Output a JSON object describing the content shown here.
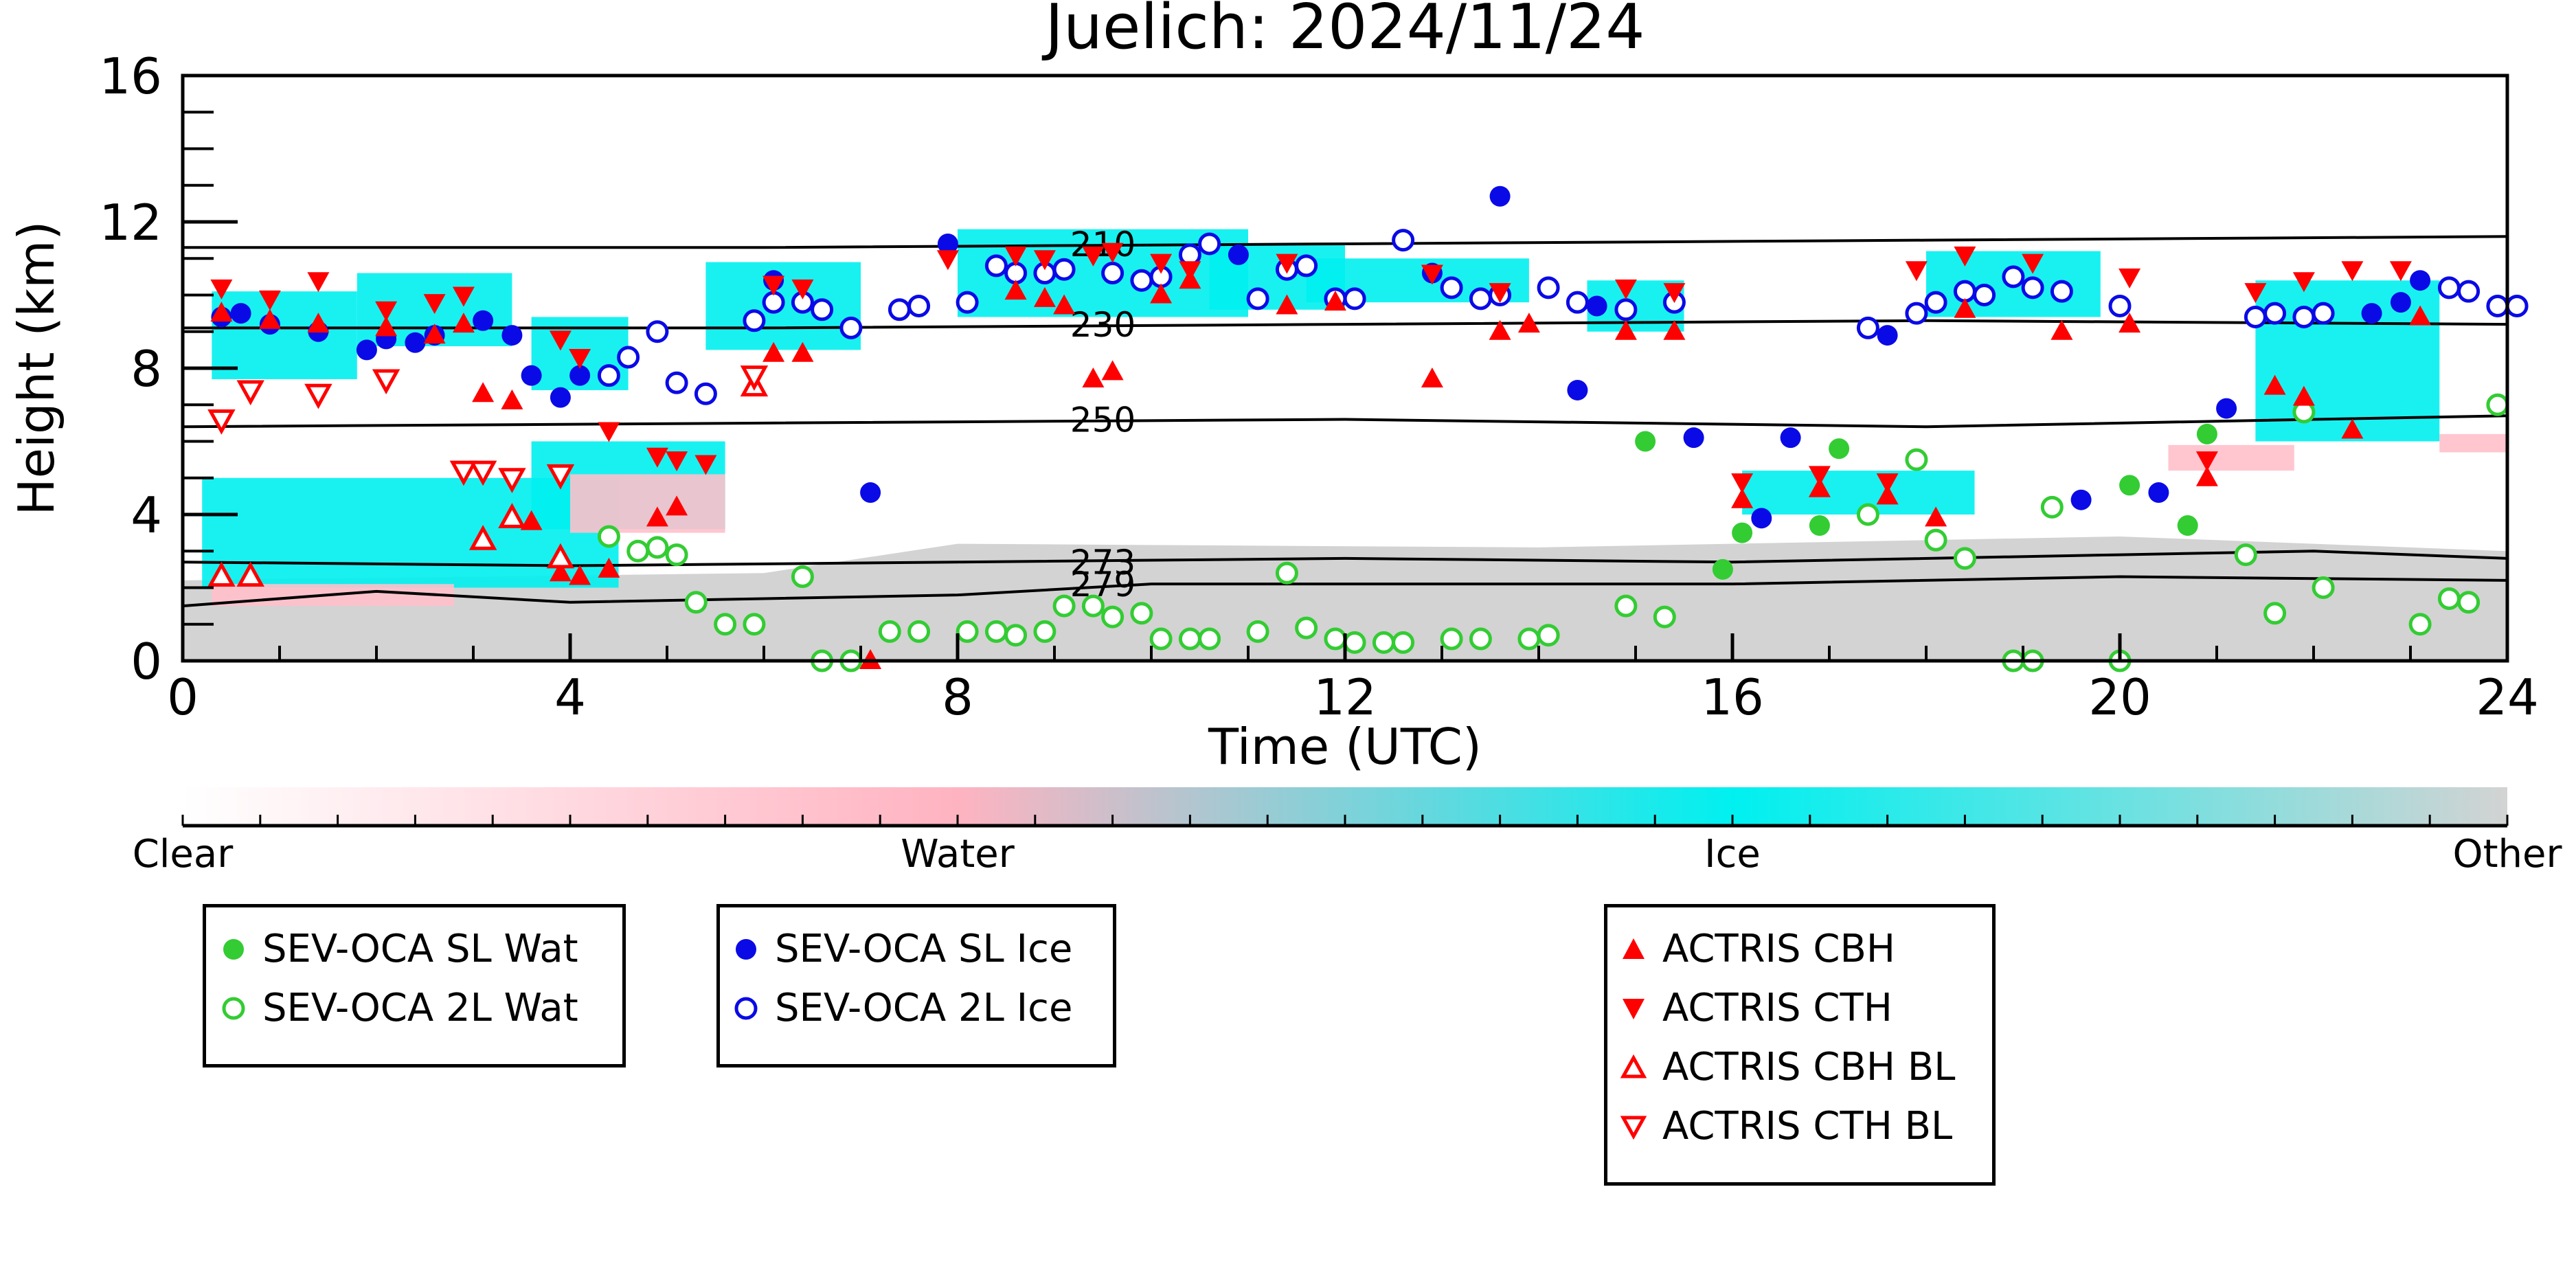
{
  "chart_data": {
    "type": "scatter",
    "title": "Juelich: 2024/11/24",
    "xlabel": "Time (UTC)",
    "ylabel": "Height (km)",
    "xlim": [
      0,
      24
    ],
    "ylim": [
      0,
      16
    ],
    "x_ticks": [
      0,
      4,
      8,
      12,
      16,
      20,
      24
    ],
    "y_ticks": [
      0,
      4,
      8,
      12,
      16
    ],
    "colorbar": {
      "labels": [
        "Clear",
        "Water",
        "Ice",
        "Other"
      ],
      "colors": [
        "#ffffff",
        "#ffb3c1",
        "#00f0f0",
        "#d3d3d3"
      ]
    },
    "isotherms": [
      {
        "label": "210",
        "points": [
          [
            0,
            11.3
          ],
          [
            6,
            11.3
          ],
          [
            12,
            11.4
          ],
          [
            18,
            11.5
          ],
          [
            24,
            11.6
          ]
        ]
      },
      {
        "label": "230",
        "points": [
          [
            0,
            9.1
          ],
          [
            6,
            9.1
          ],
          [
            12,
            9.2
          ],
          [
            18,
            9.3
          ],
          [
            24,
            9.2
          ]
        ]
      },
      {
        "label": "250",
        "points": [
          [
            0,
            6.4
          ],
          [
            6,
            6.5
          ],
          [
            12,
            6.6
          ],
          [
            18,
            6.4
          ],
          [
            24,
            6.7
          ]
        ]
      },
      {
        "label": "273",
        "points": [
          [
            0,
            2.7
          ],
          [
            4,
            2.6
          ],
          [
            8,
            2.7
          ],
          [
            12,
            2.8
          ],
          [
            16,
            2.7
          ],
          [
            20,
            2.9
          ],
          [
            22,
            3.0
          ],
          [
            24,
            2.8
          ]
        ]
      },
      {
        "label": "279",
        "points": [
          [
            0,
            1.5
          ],
          [
            2,
            1.9
          ],
          [
            4,
            1.6
          ],
          [
            6,
            1.7
          ],
          [
            8,
            1.8
          ],
          [
            10,
            2.1
          ],
          [
            12,
            2.1
          ],
          [
            16,
            2.1
          ],
          [
            20,
            2.3
          ],
          [
            24,
            2.2
          ]
        ]
      }
    ],
    "series": [
      {
        "name": "SEV-OCA SL Wat",
        "marker": "circle",
        "filled": true,
        "color": "#33cc33",
        "points": [
          [
            15.1,
            6.0
          ],
          [
            16.1,
            3.5
          ],
          [
            15.9,
            2.5
          ],
          [
            16.9,
            3.7
          ],
          [
            17.1,
            5.8
          ],
          [
            20.1,
            4.8
          ],
          [
            20.9,
            6.2
          ],
          [
            20.7,
            3.7
          ]
        ]
      },
      {
        "name": "SEV-OCA 2L Wat",
        "marker": "circle",
        "filled": false,
        "color": "#33cc33",
        "points": [
          [
            4.4,
            3.4
          ],
          [
            4.7,
            3.0
          ],
          [
            4.9,
            3.1
          ],
          [
            5.1,
            2.9
          ],
          [
            5.3,
            1.6
          ],
          [
            5.6,
            1.0
          ],
          [
            5.9,
            1.0
          ],
          [
            6.4,
            2.3
          ],
          [
            6.6,
            0.0
          ],
          [
            6.9,
            0.0
          ],
          [
            7.3,
            0.8
          ],
          [
            7.6,
            0.8
          ],
          [
            8.1,
            0.8
          ],
          [
            8.4,
            0.8
          ],
          [
            8.6,
            0.7
          ],
          [
            8.9,
            0.8
          ],
          [
            9.1,
            1.5
          ],
          [
            9.4,
            1.5
          ],
          [
            9.6,
            1.2
          ],
          [
            9.9,
            1.3
          ],
          [
            10.1,
            0.6
          ],
          [
            10.4,
            0.6
          ],
          [
            10.6,
            0.6
          ],
          [
            11.1,
            0.8
          ],
          [
            11.4,
            2.4
          ],
          [
            11.6,
            0.9
          ],
          [
            11.9,
            0.6
          ],
          [
            12.1,
            0.5
          ],
          [
            12.4,
            0.5
          ],
          [
            12.6,
            0.5
          ],
          [
            13.1,
            0.6
          ],
          [
            13.4,
            0.6
          ],
          [
            13.9,
            0.6
          ],
          [
            14.1,
            0.7
          ],
          [
            14.9,
            1.5
          ],
          [
            15.3,
            1.2
          ],
          [
            17.4,
            4.0
          ],
          [
            17.9,
            5.5
          ],
          [
            18.1,
            3.3
          ],
          [
            18.4,
            2.8
          ],
          [
            18.9,
            0.0
          ],
          [
            19.1,
            0.0
          ],
          [
            19.3,
            4.2
          ],
          [
            20.0,
            0.0
          ],
          [
            21.3,
            2.9
          ],
          [
            21.6,
            1.3
          ],
          [
            21.9,
            6.8
          ],
          [
            22.1,
            2.0
          ],
          [
            23.1,
            1.0
          ],
          [
            23.4,
            1.7
          ],
          [
            23.6,
            1.6
          ],
          [
            23.9,
            7.0
          ]
        ]
      },
      {
        "name": "SEV-OCA SL Ice",
        "marker": "circle",
        "filled": true,
        "color": "#0a0ae6",
        "points": [
          [
            0.4,
            9.4
          ],
          [
            0.6,
            9.5
          ],
          [
            0.9,
            9.2
          ],
          [
            1.4,
            9.0
          ],
          [
            1.9,
            8.5
          ],
          [
            2.1,
            8.8
          ],
          [
            2.4,
            8.7
          ],
          [
            2.6,
            8.9
          ],
          [
            3.1,
            9.3
          ],
          [
            3.4,
            8.9
          ],
          [
            3.6,
            7.8
          ],
          [
            3.9,
            7.2
          ],
          [
            4.1,
            7.8
          ],
          [
            6.1,
            10.4
          ],
          [
            7.1,
            4.6
          ],
          [
            7.9,
            11.4
          ],
          [
            10.9,
            11.1
          ],
          [
            12.9,
            10.6
          ],
          [
            13.6,
            12.7
          ],
          [
            14.4,
            7.4
          ],
          [
            14.6,
            9.7
          ],
          [
            15.6,
            6.1
          ],
          [
            16.3,
            3.9
          ],
          [
            16.6,
            6.1
          ],
          [
            17.6,
            8.9
          ],
          [
            19.6,
            4.4
          ],
          [
            20.4,
            4.6
          ],
          [
            21.1,
            6.9
          ],
          [
            22.6,
            9.5
          ],
          [
            22.9,
            9.8
          ],
          [
            23.1,
            10.4
          ]
        ]
      },
      {
        "name": "SEV-OCA 2L Ice",
        "marker": "circle",
        "filled": false,
        "color": "#0a0ae6",
        "points": [
          [
            4.4,
            7.8
          ],
          [
            4.6,
            8.3
          ],
          [
            4.9,
            9.0
          ],
          [
            5.1,
            7.6
          ],
          [
            5.4,
            7.3
          ],
          [
            5.9,
            9.3
          ],
          [
            6.1,
            9.8
          ],
          [
            6.4,
            9.8
          ],
          [
            6.6,
            9.6
          ],
          [
            6.9,
            9.1
          ],
          [
            7.4,
            9.6
          ],
          [
            7.6,
            9.7
          ],
          [
            8.1,
            9.8
          ],
          [
            8.4,
            10.8
          ],
          [
            8.6,
            10.6
          ],
          [
            8.9,
            10.6
          ],
          [
            9.1,
            10.7
          ],
          [
            9.6,
            10.6
          ],
          [
            9.9,
            10.4
          ],
          [
            10.1,
            10.5
          ],
          [
            10.4,
            11.1
          ],
          [
            10.6,
            11.4
          ],
          [
            11.1,
            9.9
          ],
          [
            11.4,
            10.7
          ],
          [
            11.6,
            10.8
          ],
          [
            11.9,
            9.9
          ],
          [
            12.1,
            9.9
          ],
          [
            12.6,
            11.5
          ],
          [
            13.1,
            10.2
          ],
          [
            13.4,
            9.9
          ],
          [
            13.6,
            10.0
          ],
          [
            14.1,
            10.2
          ],
          [
            14.4,
            9.8
          ],
          [
            14.9,
            9.6
          ],
          [
            15.4,
            9.8
          ],
          [
            17.4,
            9.1
          ],
          [
            17.9,
            9.5
          ],
          [
            18.1,
            9.8
          ],
          [
            18.4,
            10.1
          ],
          [
            18.6,
            10.0
          ],
          [
            18.9,
            10.5
          ],
          [
            19.1,
            10.2
          ],
          [
            19.4,
            10.1
          ],
          [
            20.0,
            9.7
          ],
          [
            21.4,
            9.4
          ],
          [
            21.6,
            9.5
          ],
          [
            21.9,
            9.4
          ],
          [
            22.1,
            9.5
          ],
          [
            23.4,
            10.2
          ],
          [
            23.6,
            10.1
          ],
          [
            23.9,
            9.7
          ],
          [
            24.1,
            9.7
          ]
        ]
      },
      {
        "name": "ACTRIS CBH",
        "marker": "triangle-up",
        "filled": true,
        "color": "#ff0000",
        "points": [
          [
            0.4,
            9.5
          ],
          [
            0.9,
            9.3
          ],
          [
            1.4,
            9.2
          ],
          [
            2.1,
            9.1
          ],
          [
            2.6,
            8.9
          ],
          [
            2.9,
            9.2
          ],
          [
            3.1,
            7.3
          ],
          [
            3.4,
            7.1
          ],
          [
            3.6,
            3.8
          ],
          [
            3.9,
            2.4
          ],
          [
            4.1,
            2.3
          ],
          [
            4.4,
            2.5
          ],
          [
            4.9,
            3.9
          ],
          [
            5.1,
            4.2
          ],
          [
            6.1,
            8.4
          ],
          [
            6.4,
            8.4
          ],
          [
            7.1,
            0.0
          ],
          [
            8.6,
            10.1
          ],
          [
            8.9,
            9.9
          ],
          [
            9.1,
            9.7
          ],
          [
            9.4,
            7.7
          ],
          [
            9.6,
            7.9
          ],
          [
            10.1,
            10.0
          ],
          [
            10.4,
            10.4
          ],
          [
            11.4,
            9.7
          ],
          [
            11.9,
            9.8
          ],
          [
            12.9,
            7.7
          ],
          [
            13.6,
            9.0
          ],
          [
            13.9,
            9.2
          ],
          [
            14.9,
            9.0
          ],
          [
            15.4,
            9.0
          ],
          [
            16.1,
            4.4
          ],
          [
            16.9,
            4.7
          ],
          [
            17.6,
            4.5
          ],
          [
            18.1,
            3.9
          ],
          [
            18.4,
            9.6
          ],
          [
            19.4,
            9.0
          ],
          [
            20.1,
            9.2
          ],
          [
            20.9,
            5.0
          ],
          [
            21.6,
            7.5
          ],
          [
            21.9,
            7.2
          ],
          [
            22.4,
            6.3
          ],
          [
            23.1,
            9.4
          ]
        ]
      },
      {
        "name": "ACTRIS CTH",
        "marker": "triangle-down",
        "filled": true,
        "color": "#ff0000",
        "points": [
          [
            0.4,
            10.2
          ],
          [
            0.9,
            9.9
          ],
          [
            1.4,
            10.4
          ],
          [
            2.1,
            9.6
          ],
          [
            2.6,
            9.8
          ],
          [
            2.9,
            10.0
          ],
          [
            3.9,
            8.8
          ],
          [
            4.1,
            8.3
          ],
          [
            4.4,
            6.3
          ],
          [
            4.9,
            5.6
          ],
          [
            5.1,
            5.5
          ],
          [
            5.4,
            5.4
          ],
          [
            6.1,
            10.3
          ],
          [
            6.4,
            10.2
          ],
          [
            7.9,
            11.0
          ],
          [
            8.6,
            11.1
          ],
          [
            8.9,
            11.0
          ],
          [
            9.4,
            11.1
          ],
          [
            9.6,
            11.2
          ],
          [
            10.1,
            10.9
          ],
          [
            10.4,
            10.7
          ],
          [
            11.4,
            10.9
          ],
          [
            12.9,
            10.6
          ],
          [
            13.6,
            10.1
          ],
          [
            14.9,
            10.2
          ],
          [
            15.4,
            10.1
          ],
          [
            16.1,
            4.9
          ],
          [
            16.9,
            5.1
          ],
          [
            17.6,
            4.9
          ],
          [
            17.9,
            10.7
          ],
          [
            18.4,
            11.1
          ],
          [
            19.1,
            10.9
          ],
          [
            20.1,
            10.5
          ],
          [
            20.9,
            5.5
          ],
          [
            21.4,
            10.1
          ],
          [
            21.9,
            10.4
          ],
          [
            22.4,
            10.7
          ],
          [
            22.9,
            10.7
          ]
        ]
      },
      {
        "name": "ACTRIS CBH BL",
        "marker": "triangle-up",
        "filled": false,
        "color": "#ff0000",
        "points": [
          [
            0.4,
            2.3
          ],
          [
            0.7,
            2.3
          ],
          [
            3.1,
            3.3
          ],
          [
            3.4,
            3.9
          ],
          [
            3.9,
            2.8
          ],
          [
            5.9,
            7.5
          ]
        ]
      },
      {
        "name": "ACTRIS CTH BL",
        "marker": "triangle-down",
        "filled": false,
        "color": "#ff0000",
        "points": [
          [
            0.4,
            6.6
          ],
          [
            0.7,
            7.4
          ],
          [
            1.4,
            7.3
          ],
          [
            2.1,
            7.7
          ],
          [
            2.9,
            5.2
          ],
          [
            3.1,
            5.2
          ],
          [
            3.4,
            5.0
          ],
          [
            3.9,
            5.1
          ],
          [
            5.9,
            7.8
          ]
        ]
      }
    ],
    "legends": [
      [
        "SEV-OCA SL Wat",
        "SEV-OCA 2L Wat"
      ],
      [
        "SEV-OCA SL Ice",
        "SEV-OCA 2L Ice"
      ],
      [
        "ACTRIS CBH",
        "ACTRIS CTH",
        "ACTRIS CBH BL",
        "ACTRIS CTH BL"
      ]
    ]
  }
}
